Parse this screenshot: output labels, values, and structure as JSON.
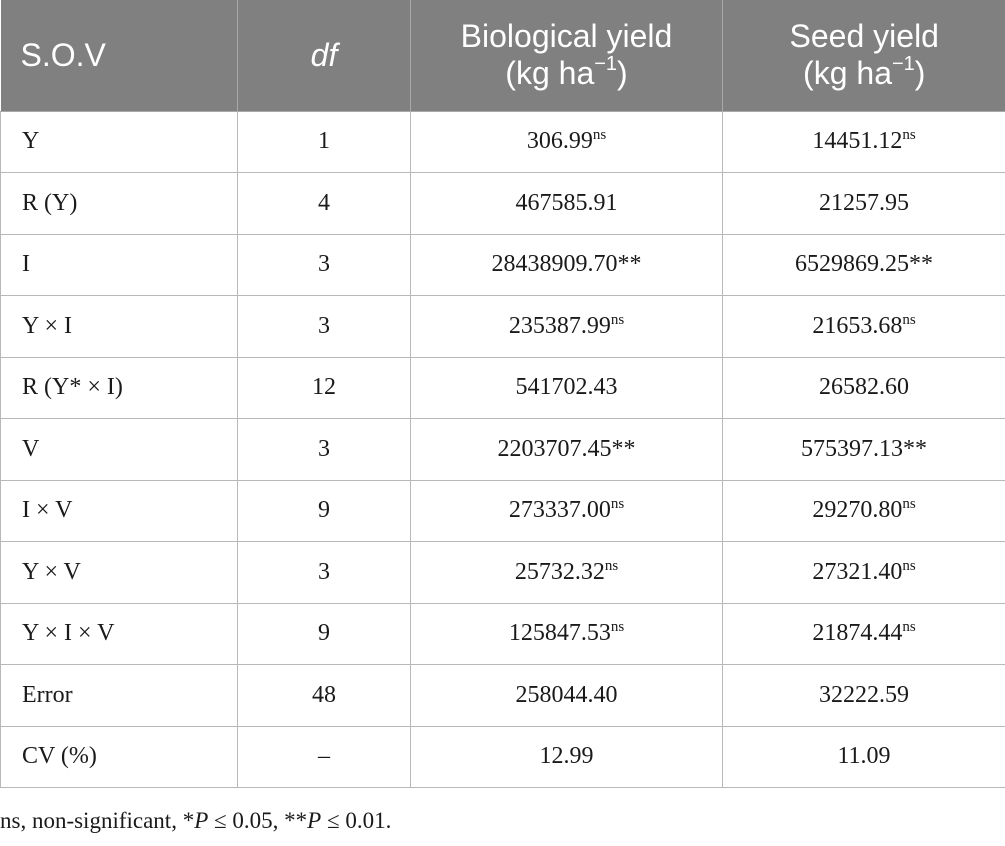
{
  "table": {
    "headers": {
      "sov": "S.O.V",
      "df": "df",
      "bio_line1": "Biological yield",
      "bio_unit": "(kg ha",
      "bio_exp": "−1",
      "bio_close": ")",
      "seed_line1": "Seed yield",
      "seed_unit": "(kg ha",
      "seed_exp": "−1",
      "seed_close": ")"
    },
    "rows": [
      {
        "sov": "Y",
        "df": "1",
        "bio": "306.99",
        "bio_sig": "ns",
        "seed": "14451.12",
        "seed_sig": "ns"
      },
      {
        "sov": "R (Y)",
        "df": "4",
        "bio": "467585.91",
        "bio_sig": "",
        "seed": "21257.95",
        "seed_sig": ""
      },
      {
        "sov": "I",
        "df": "3",
        "bio": "28438909.70**",
        "bio_sig": "",
        "seed": "6529869.25**",
        "seed_sig": ""
      },
      {
        "sov": "Y × I",
        "df": "3",
        "bio": "235387.99",
        "bio_sig": "ns",
        "seed": "21653.68",
        "seed_sig": "ns"
      },
      {
        "sov": "R (Y* × I)",
        "df": "12",
        "bio": "541702.43",
        "bio_sig": "",
        "seed": "26582.60",
        "seed_sig": ""
      },
      {
        "sov": "V",
        "df": "3",
        "bio": "2203707.45**",
        "bio_sig": "",
        "seed": "575397.13**",
        "seed_sig": ""
      },
      {
        "sov": "I × V",
        "df": "9",
        "bio": "273337.00",
        "bio_sig": "ns",
        "seed": "29270.80",
        "seed_sig": "ns"
      },
      {
        "sov": "Y × V",
        "df": "3",
        "bio": "25732.32",
        "bio_sig": "ns",
        "seed": "27321.40",
        "seed_sig": "ns"
      },
      {
        "sov": "Y × I × V",
        "df": "9",
        "bio": "125847.53",
        "bio_sig": "ns",
        "seed": "21874.44",
        "seed_sig": "ns"
      },
      {
        "sov": "Error",
        "df": "48",
        "bio": "258044.40",
        "bio_sig": "",
        "seed": "32222.59",
        "seed_sig": ""
      },
      {
        "sov": "CV (%)",
        "df": "–",
        "bio": "12.99",
        "bio_sig": "",
        "seed": "11.09",
        "seed_sig": ""
      }
    ]
  },
  "footnote": {
    "part1": "ns, non-significant, *",
    "p1": "P",
    "part2": " ≤ 0.05, **",
    "p2": "P",
    "part3": " ≤ 0.01."
  },
  "colors": {
    "header_bg": "#808080",
    "header_text": "#ffffff",
    "body_text": "#1a1a1a",
    "grid": "#b8b8b8"
  }
}
